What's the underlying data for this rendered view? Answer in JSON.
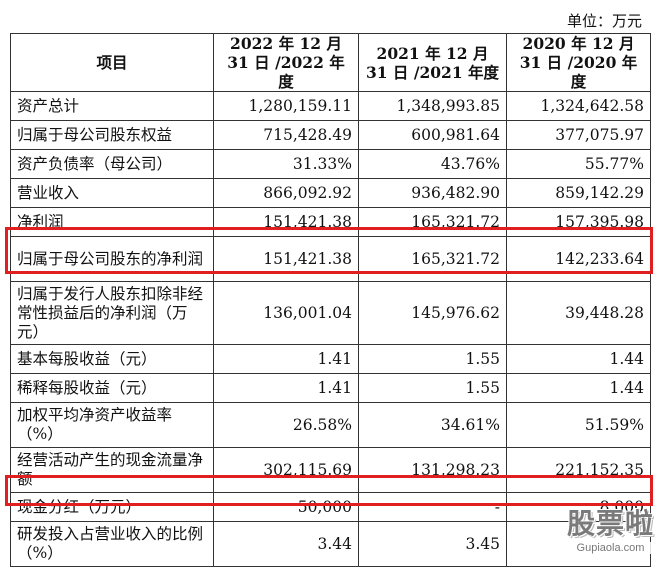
{
  "unit_label": "单位：万元",
  "header": {
    "item": "项目",
    "col1": "2022 年 12 月 31 日 /2022 年度",
    "col2": "2021 年 12 月 31 日 /2021 年度",
    "col3": "2020 年 12 月 31 日 /2020 年度"
  },
  "rows": [
    {
      "label": "资产总计",
      "v1": "1,280,159.11",
      "v2": "1,348,993.85",
      "v3": "1,324,642.58"
    },
    {
      "label": "归属于母公司股东权益",
      "v1": "715,428.49",
      "v2": "600,981.64",
      "v3": "377,075.97"
    },
    {
      "label": "资产负债率（母公司）",
      "v1": "31.33%",
      "v2": "43.76%",
      "v3": "55.77%"
    },
    {
      "label": "营业收入",
      "v1": "866,092.92",
      "v2": "936,482.90",
      "v3": "859,142.29"
    },
    {
      "label": "净利润",
      "v1": "151,421.38",
      "v2": "165,321.72",
      "v3": "157,395.98"
    },
    {
      "label": "归属于母公司股东的净利润",
      "v1": "151,421.38",
      "v2": "165,321.72",
      "v3": "142,233.64"
    },
    {
      "label": "归属于发行人股东扣除非经常性损益后的净利润（万元）",
      "v1": "136,001.04",
      "v2": "145,976.62",
      "v3": "39,448.28"
    },
    {
      "label": "基本每股收益（元）",
      "v1": "1.41",
      "v2": "1.55",
      "v3": "1.44"
    },
    {
      "label": "稀释每股收益（元）",
      "v1": "1.41",
      "v2": "1.55",
      "v3": "1.44"
    },
    {
      "label": "加权平均净资产收益率（%）",
      "v1": "26.58%",
      "v2": "34.61%",
      "v3": "51.59%"
    },
    {
      "label": "经营活动产生的现金流量净额",
      "v1": "302,115.69",
      "v2": "131,298.23",
      "v3": "221,152.35"
    },
    {
      "label": "现金分红（万元）",
      "v1": "50,000",
      "v2": "-",
      "v3": "8,000"
    },
    {
      "label": "研发投入占营业收入的比例（%）",
      "v1": "3.44",
      "v2": "3.45",
      "v3": ""
    }
  ],
  "highlighted_rows": [
    "归属于母公司股东的净利润",
    "现金分红（万元）"
  ],
  "highlight_color": "#e02020",
  "watermark": {
    "logo": "股票啦",
    "url": "Gupiaola.com"
  }
}
